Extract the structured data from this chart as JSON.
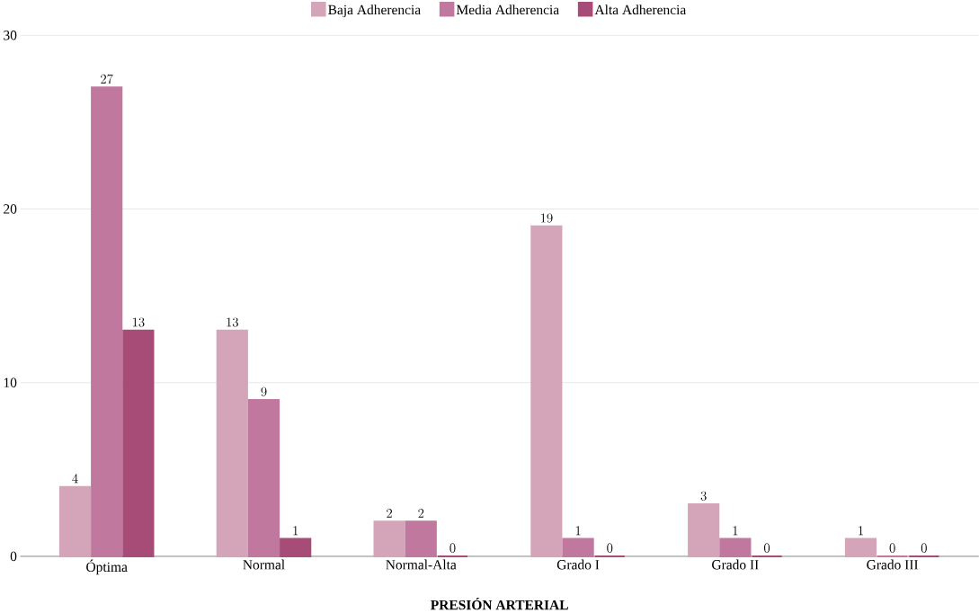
{
  "chart_data": {
    "type": "bar",
    "xlabel": "**PRESIÓN ARTERIAL**",
    "categories": [
      "Óptima",
      "Normal",
      "Normal-Alta",
      "Grado I",
      "Grado II",
      "Grado III"
    ],
    "series": [
      {
        "name": "Baja Adherencia",
        "color": "#d4a5b9",
        "values": [
          4,
          13,
          2,
          19,
          3,
          1
        ]
      },
      {
        "name": "Media Adherencia",
        "color": "#c0789f",
        "values": [
          27,
          9,
          2,
          1,
          1,
          0
        ]
      },
      {
        "name": "Alta Adherencia",
        "color": "#a64c77",
        "values": [
          13,
          1,
          0,
          0,
          0,
          0
        ]
      }
    ],
    "ylim": [
      0,
      30
    ],
    "yticks": [
      0,
      10,
      20,
      30
    ],
    "grid": "y",
    "legend": "top",
    "data_labels": true
  }
}
